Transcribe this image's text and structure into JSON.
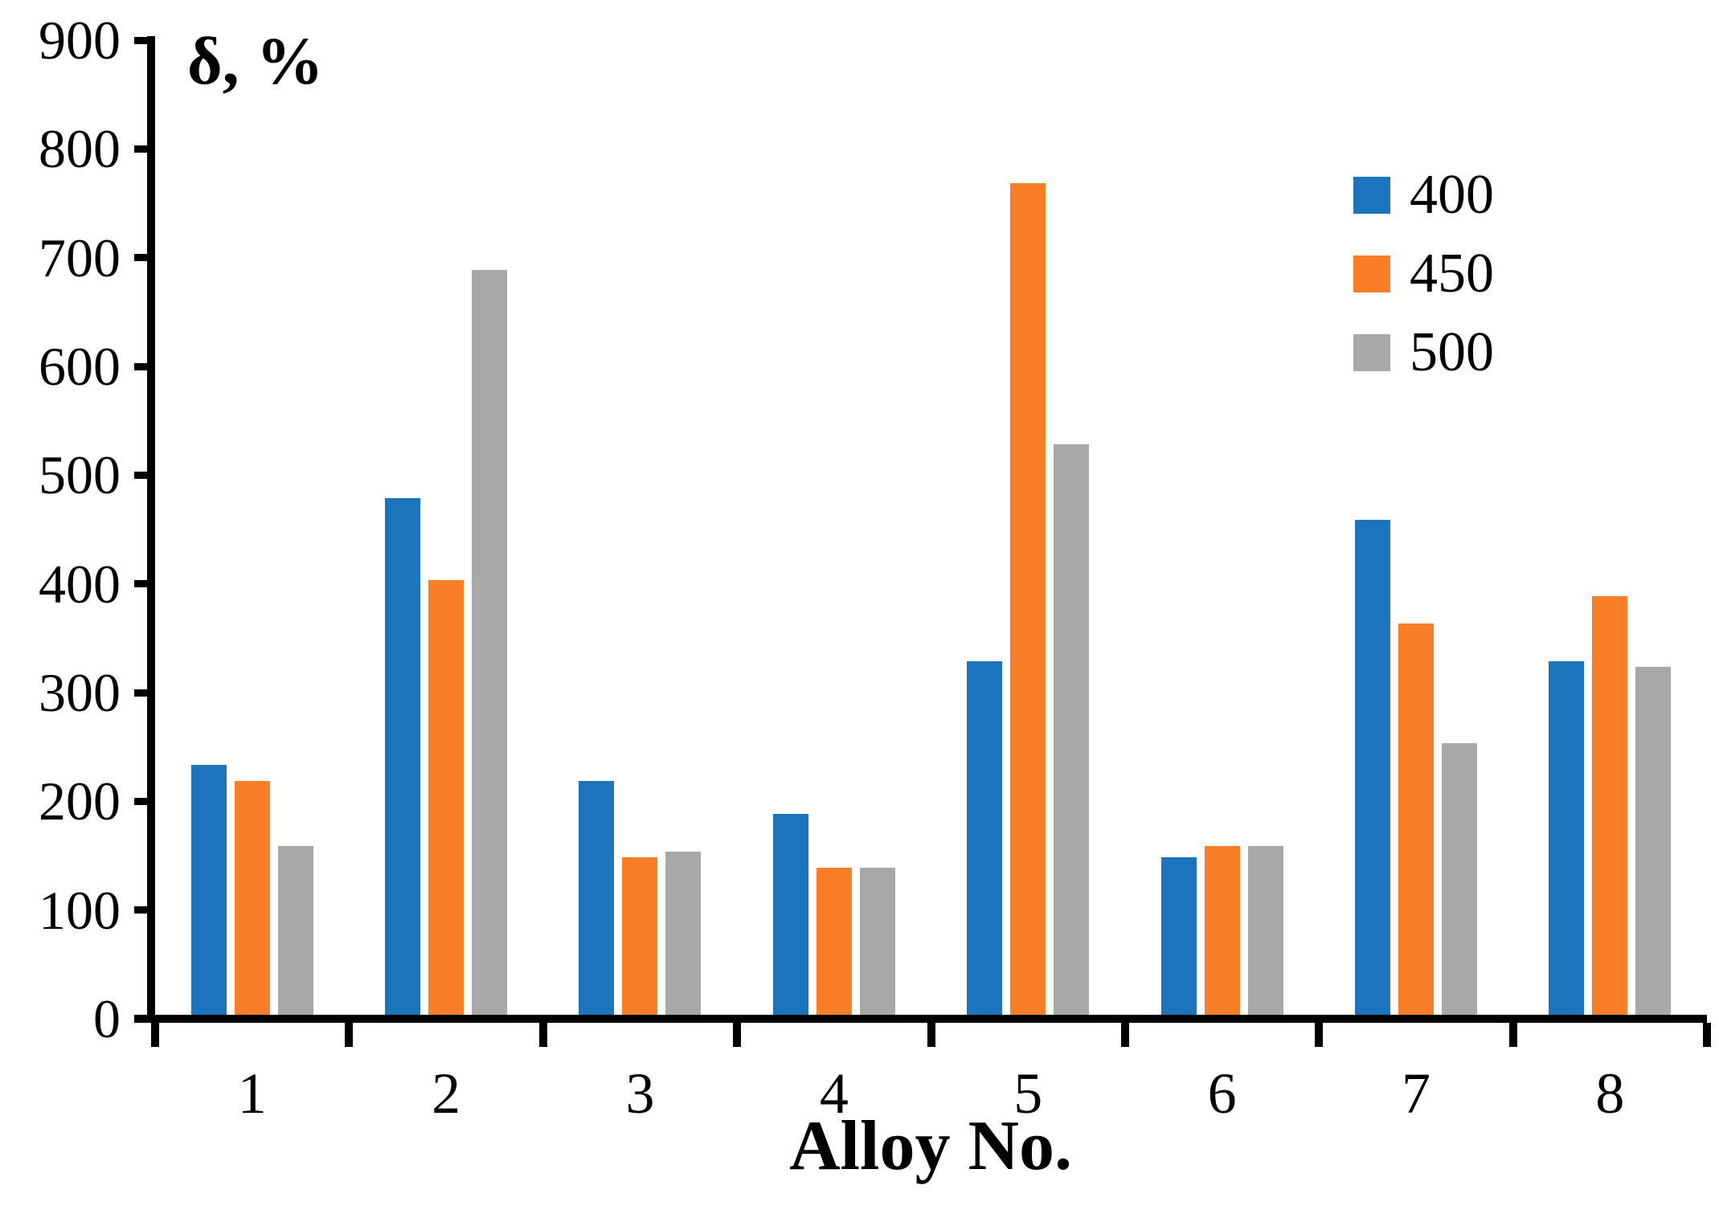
{
  "chart_data": {
    "type": "bar",
    "title": "",
    "ylabel": "δ, %",
    "xlabel": "Alloy No.",
    "categories": [
      "1",
      "2",
      "3",
      "4",
      "5",
      "6",
      "7",
      "8"
    ],
    "series": [
      {
        "name": "400",
        "color": "#1C75BC",
        "values": [
          230,
          475,
          215,
          185,
          325,
          145,
          455,
          325
        ]
      },
      {
        "name": "450",
        "color": "#FA7D28",
        "values": [
          215,
          400,
          145,
          135,
          765,
          155,
          360,
          385
        ]
      },
      {
        "name": "500",
        "color": "#A8A8A8",
        "values": [
          155,
          685,
          150,
          135,
          525,
          155,
          250,
          320
        ]
      }
    ],
    "ylim": [
      0,
      900
    ],
    "yticks": [
      0,
      100,
      200,
      300,
      400,
      500,
      600,
      700,
      800,
      900
    ],
    "grid": false,
    "legend_position": "top-right",
    "axis_color": "#000000",
    "background_color": "#ffffff"
  }
}
